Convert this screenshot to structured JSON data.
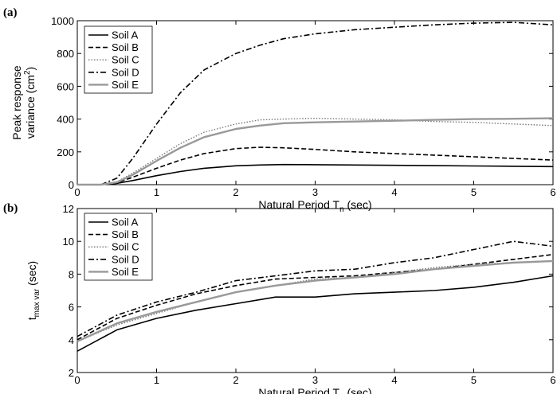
{
  "chart_data": [
    {
      "panel_tag": "(a)",
      "type": "line",
      "xlabel": "Natural Period T",
      "xlabel_sub": "n",
      "xlabel_unit": " (sec)",
      "ylabel_line1": "Peak response",
      "ylabel_line2": "variance (cm",
      "ylabel_sup": "2",
      "ylabel_close": ")",
      "xlim": [
        0,
        6
      ],
      "ylim": [
        0,
        1000
      ],
      "xticks": [
        "0",
        "1",
        "2",
        "3",
        "4",
        "5",
        "6"
      ],
      "yticks": [
        "0",
        "200",
        "400",
        "600",
        "800",
        "1000"
      ],
      "legend_position": "top-left",
      "series": [
        {
          "name": "Soil A",
          "color": "#000000",
          "dash": "solid",
          "x": [
            0,
            0.3,
            0.5,
            0.7,
            1.0,
            1.3,
            1.6,
            2.0,
            2.3,
            2.6,
            3.0,
            3.5,
            4.0,
            4.5,
            5.0,
            5.5,
            6.0
          ],
          "y": [
            0,
            0,
            8,
            25,
            55,
            80,
            100,
            115,
            120,
            123,
            122,
            120,
            118,
            116,
            114,
            112,
            110
          ]
        },
        {
          "name": "Soil B",
          "color": "#000000",
          "dash": "dashed",
          "x": [
            0,
            0.3,
            0.5,
            0.7,
            1.0,
            1.3,
            1.6,
            2.0,
            2.3,
            2.6,
            3.0,
            3.5,
            4.0,
            4.5,
            5.0,
            5.5,
            6.0
          ],
          "y": [
            0,
            0,
            12,
            45,
            100,
            150,
            190,
            220,
            228,
            225,
            215,
            200,
            190,
            180,
            170,
            160,
            150
          ]
        },
        {
          "name": "Soil C",
          "color": "#777777",
          "dash": "dotted",
          "x": [
            0,
            0.3,
            0.5,
            0.7,
            1.0,
            1.3,
            1.6,
            2.0,
            2.3,
            2.6,
            3.0,
            3.5,
            4.0,
            4.5,
            5.0,
            5.5,
            6.0
          ],
          "y": [
            0,
            0,
            18,
            70,
            160,
            250,
            320,
            370,
            395,
            400,
            405,
            400,
            395,
            385,
            380,
            370,
            360
          ]
        },
        {
          "name": "Soil D",
          "color": "#000000",
          "dash": "dashdot",
          "x": [
            0,
            0.3,
            0.5,
            0.7,
            1.0,
            1.3,
            1.6,
            2.0,
            2.3,
            2.6,
            3.0,
            3.5,
            4.0,
            4.5,
            5.0,
            5.5,
            6.0
          ],
          "y": [
            0,
            0,
            40,
            160,
            370,
            560,
            700,
            800,
            850,
            890,
            920,
            945,
            960,
            975,
            985,
            990,
            975
          ]
        },
        {
          "name": "Soil E",
          "color": "#999999",
          "dash": "solid-thick",
          "x": [
            0,
            0.3,
            0.5,
            0.7,
            1.0,
            1.3,
            1.6,
            2.0,
            2.3,
            2.6,
            3.0,
            3.5,
            4.0,
            4.5,
            5.0,
            5.5,
            6.0
          ],
          "y": [
            0,
            0,
            15,
            60,
            145,
            225,
            290,
            340,
            360,
            375,
            380,
            385,
            390,
            395,
            400,
            402,
            405
          ]
        }
      ]
    },
    {
      "panel_tag": "(b)",
      "type": "line",
      "xlabel": "Natural Period T",
      "xlabel_sub": "n",
      "xlabel_unit": " (sec)",
      "ylabel_main": "t",
      "ylabel_sub": "max var",
      "ylabel_unit": " (sec)",
      "xlim": [
        0,
        6
      ],
      "ylim": [
        2,
        12
      ],
      "xticks": [
        "0",
        "1",
        "2",
        "3",
        "4",
        "5",
        "6"
      ],
      "yticks": [
        "2",
        "4",
        "6",
        "8",
        "10",
        "12"
      ],
      "legend_position": "top-left",
      "series": [
        {
          "name": "Soil A",
          "color": "#000000",
          "dash": "solid",
          "x": [
            0,
            0.5,
            1.0,
            1.5,
            2.0,
            2.5,
            3.0,
            3.5,
            4.0,
            4.5,
            5.0,
            5.5,
            6.0
          ],
          "y": [
            3.3,
            4.6,
            5.3,
            5.8,
            6.2,
            6.6,
            6.6,
            6.8,
            6.9,
            7.0,
            7.2,
            7.5,
            7.9
          ]
        },
        {
          "name": "Soil B",
          "color": "#000000",
          "dash": "dashed",
          "x": [
            0,
            0.5,
            1.0,
            1.5,
            2.0,
            2.5,
            3.0,
            3.5,
            4.0,
            4.5,
            5.0,
            5.5,
            6.0
          ],
          "y": [
            4.0,
            5.3,
            6.1,
            6.8,
            7.3,
            7.7,
            7.8,
            7.9,
            8.1,
            8.3,
            8.6,
            8.9,
            9.2
          ]
        },
        {
          "name": "Soil C",
          "color": "#777777",
          "dash": "dotted",
          "x": [
            0,
            0.5,
            1.0,
            1.5,
            2.0,
            2.5,
            3.0,
            3.5,
            4.0,
            4.5,
            5.0,
            5.5,
            6.0
          ],
          "y": [
            3.9,
            4.9,
            5.6,
            6.3,
            6.9,
            7.3,
            7.7,
            7.8,
            8.1,
            8.4,
            8.6,
            8.7,
            8.8
          ]
        },
        {
          "name": "Soil D",
          "color": "#000000",
          "dash": "dashdot",
          "x": [
            0,
            0.5,
            1.0,
            1.5,
            2.0,
            2.5,
            3.0,
            3.5,
            4.0,
            4.5,
            5.0,
            5.5,
            6.0
          ],
          "y": [
            4.2,
            5.5,
            6.3,
            6.9,
            7.6,
            7.9,
            8.2,
            8.3,
            8.7,
            9.0,
            9.5,
            10.0,
            9.7
          ]
        },
        {
          "name": "Soil E",
          "color": "#999999",
          "dash": "solid-thick",
          "x": [
            0,
            0.5,
            1.0,
            1.5,
            2.0,
            2.5,
            3.0,
            3.5,
            4.0,
            4.5,
            5.0,
            5.5,
            6.0
          ],
          "y": [
            3.9,
            5.0,
            5.7,
            6.3,
            6.9,
            7.3,
            7.6,
            7.8,
            8.0,
            8.3,
            8.5,
            8.7,
            8.8
          ]
        }
      ]
    }
  ]
}
